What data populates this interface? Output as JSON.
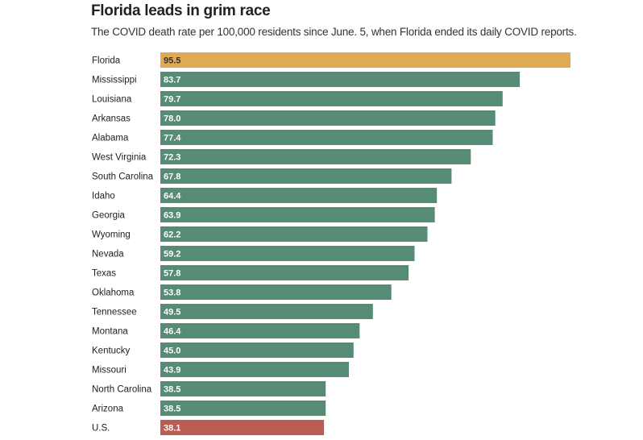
{
  "title": "Florida leads in grim race",
  "subtitle": "The COVID death rate per 100,000 residents since June. 5, when Florida ended its daily COVID reports.",
  "colors": {
    "default": "#568b74",
    "highlight_florida": "#e0aa55",
    "highlight_us": "#b95d52",
    "label_on_default": "#ffffff",
    "label_on_florida": "#333333"
  },
  "chart_data": {
    "type": "bar",
    "orientation": "horizontal",
    "title": "Florida leads in grim race",
    "subtitle": "The COVID death rate per 100,000 residents since June. 5, when Florida ended its daily COVID reports.",
    "categories": [
      "Florida",
      "Mississippi",
      "Louisiana",
      "Arkansas",
      "Alabama",
      "West Virginia",
      "South Carolina",
      "Idaho",
      "Georgia",
      "Wyoming",
      "Nevada",
      "Texas",
      "Oklahoma",
      "Tennessee",
      "Montana",
      "Kentucky",
      "Missouri",
      "North Carolina",
      "Arizona",
      "U.S."
    ],
    "values": [
      95.5,
      83.7,
      79.7,
      78.0,
      77.4,
      72.3,
      67.8,
      64.4,
      63.9,
      62.2,
      59.2,
      57.8,
      53.8,
      49.5,
      46.4,
      45.0,
      43.9,
      38.5,
      38.5,
      38.1
    ],
    "value_labels": [
      "95.5",
      "83.7",
      "79.7",
      "78.0",
      "77.4",
      "72.3",
      "67.8",
      "64.4",
      "63.9",
      "62.2",
      "59.2",
      "57.8",
      "53.8",
      "49.5",
      "46.4",
      "45.0",
      "43.9",
      "38.5",
      "38.5",
      "38.1"
    ],
    "highlights": {
      "Florida": "highlight_florida",
      "U.S.": "highlight_us"
    },
    "xlim": [
      0,
      95.5
    ],
    "grid": false,
    "legend": "none"
  }
}
